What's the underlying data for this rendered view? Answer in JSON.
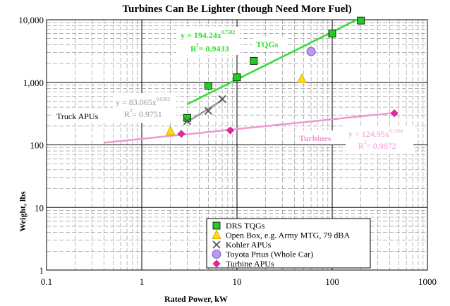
{
  "chart_data": {
    "type": "scatter",
    "title": "Turbines Can Be Lighter (though Need More Fuel)",
    "xlabel": "Rated Power, kW",
    "ylabel": "Weight, lbs",
    "x_scale": "log",
    "y_scale": "log",
    "xlim": [
      0.1,
      1000
    ],
    "ylim": [
      1,
      10000
    ],
    "x_ticks": [
      "0.1",
      "1",
      "10",
      "100",
      "1000"
    ],
    "y_ticks": [
      "1",
      "10",
      "100",
      "1,000",
      "10,000"
    ],
    "grid": true,
    "legend_position": "bottom-right",
    "series": [
      {
        "name": "DRS TQGs",
        "color": "#22cc22",
        "marker": "square",
        "points": [
          [
            3,
            270
          ],
          [
            5,
            880
          ],
          [
            10,
            1200
          ],
          [
            15,
            2200
          ],
          [
            100,
            6000
          ],
          [
            200,
            9700
          ]
        ]
      },
      {
        "name": "Open Box, e.g. Army MTG, 79 dBA",
        "color": "#ffdd00",
        "marker": "triangle",
        "points": [
          [
            2,
            165
          ],
          [
            48,
            1130
          ]
        ]
      },
      {
        "name": "Kohler APUs",
        "color": "#555555",
        "marker": "x",
        "points": [
          [
            3,
            240
          ],
          [
            5,
            350
          ],
          [
            7,
            540
          ]
        ]
      },
      {
        "name": "Toyota Prius (Whole Car)",
        "color": "#bb99ee",
        "marker": "circle",
        "points": [
          [
            60,
            3100
          ]
        ]
      },
      {
        "name": "Turbine APUs",
        "color": "#ee22aa",
        "marker": "diamond",
        "points": [
          [
            2.6,
            150
          ],
          [
            8.5,
            170
          ],
          [
            450,
            320
          ]
        ]
      }
    ],
    "trendlines": [
      {
        "name": "TQGs",
        "color": "#33dd33",
        "coef": 194.24,
        "exponent": 0.7582,
        "x_range": [
          3,
          200
        ],
        "eq_main": "y = 194.24x",
        "eq_exp": "0.7582",
        "r2": "R  = 0.9433",
        "r2_exp": "2"
      },
      {
        "name": "Truck APUs",
        "color": "#999999",
        "coef": 83.065,
        "exponent": 0.9393,
        "x_range": [
          3,
          7
        ],
        "eq_main": "y = 83.065x",
        "eq_exp": "0.9393",
        "r2": "R  = 0.9751",
        "r2_exp": "2"
      },
      {
        "name": "Turbines",
        "color": "#ee99cc",
        "coef": 124.95,
        "exponent": 0.1564,
        "x_range": [
          0.4,
          450
        ],
        "eq_main": "y = 124.95x",
        "eq_exp": "0.1564",
        "r2": "R  = 0.9872",
        "r2_exp": "2"
      }
    ]
  }
}
